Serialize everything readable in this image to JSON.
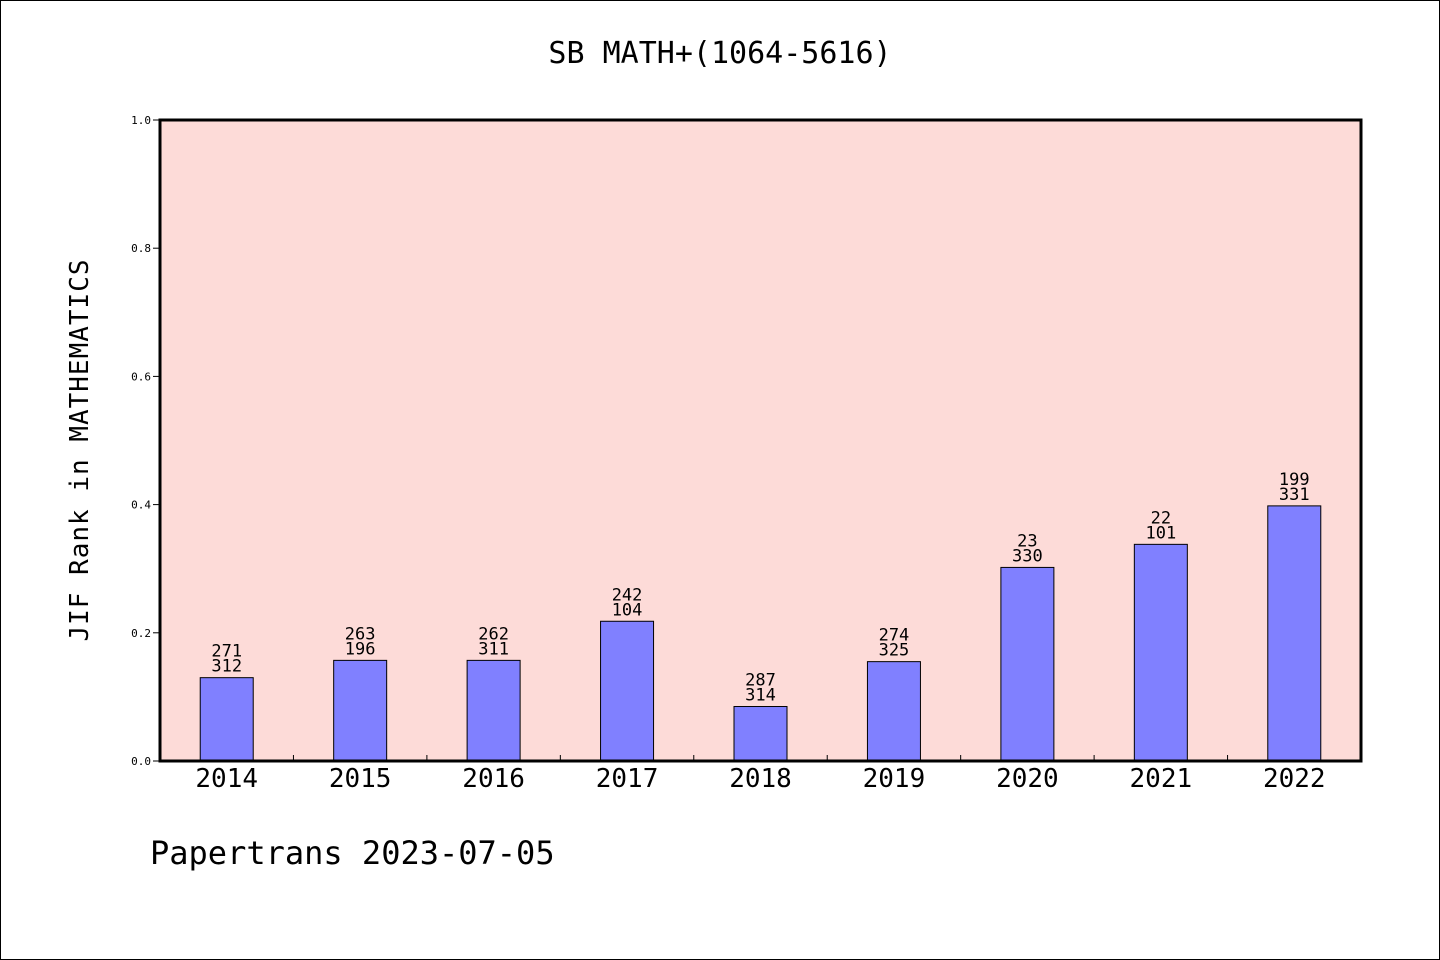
{
  "colors": {
    "plot_background": "#fddbd8",
    "bar": "#8080ff",
    "axis": "#000000"
  },
  "footer": "Papertrans 2023-07-05",
  "chart_data": {
    "type": "bar",
    "title": "SB MATH+(1064-5616)",
    "xlabel": "",
    "ylabel": "JIF Rank in MATHEMATICS",
    "ylim": [
      0,
      1.0
    ],
    "yticks": [
      "0.0",
      "0.2",
      "0.4",
      "0.6",
      "0.8",
      "1.0"
    ],
    "categories": [
      "2014",
      "2015",
      "2016",
      "2017",
      "2018",
      "2019",
      "2020",
      "2021",
      "2022"
    ],
    "values": [
      0.13,
      0.157,
      0.157,
      0.218,
      0.085,
      0.155,
      0.302,
      0.338,
      0.398
    ],
    "labels_top": [
      "271",
      "263",
      "262",
      "242",
      "287",
      "274",
      "23",
      "22",
      "199"
    ],
    "labels_bottom": [
      "312",
      "196",
      "311",
      "104",
      "314",
      "325",
      "330",
      "101",
      "331"
    ],
    "grid": false,
    "legend": "none"
  }
}
